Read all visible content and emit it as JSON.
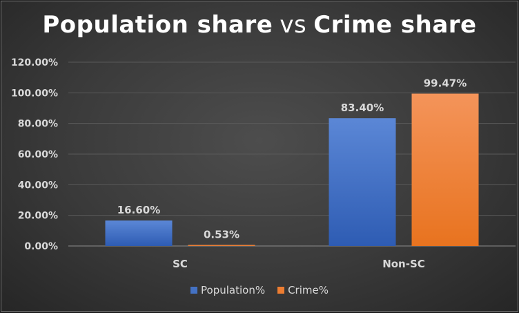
{
  "title": {
    "part1": "Population share",
    "vs": "vs",
    "part2": "Crime share"
  },
  "chart_data": {
    "type": "bar",
    "categories": [
      "SC",
      "Non-SC"
    ],
    "series": [
      {
        "name": "Population%",
        "values": [
          16.6,
          83.4
        ],
        "labels": [
          "16.60%",
          "83.40%"
        ],
        "color": "#4472c4"
      },
      {
        "name": "Crime%",
        "values": [
          0.53,
          99.47
        ],
        "labels": [
          "0.53%",
          "99.47%"
        ],
        "color": "#ed7d31"
      }
    ],
    "ylim": [
      0,
      120
    ],
    "yticks": [
      0,
      20,
      40,
      60,
      80,
      100,
      120
    ],
    "ytick_labels": [
      "0.00%",
      "20.00%",
      "40.00%",
      "60.00%",
      "80.00%",
      "100.00%",
      "120.00%"
    ],
    "gridlines": true,
    "legend_position": "bottom"
  }
}
